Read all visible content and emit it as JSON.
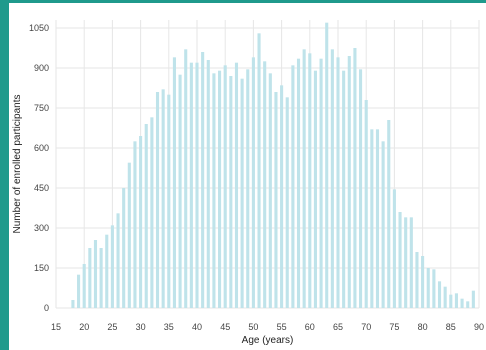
{
  "colors": {
    "frame": "#1f9a8c",
    "panel": "#ffffff",
    "bar": "#bfe3ea",
    "grid": "#e6e6e6"
  },
  "chart_data": {
    "type": "bar",
    "xlabel": "Age (years)",
    "ylabel": "Number of enrolled participants",
    "xlim": [
      15,
      90
    ],
    "ylim": [
      0,
      1080
    ],
    "xticks": [
      15,
      20,
      25,
      30,
      35,
      40,
      45,
      50,
      55,
      60,
      65,
      70,
      75,
      80,
      85,
      90
    ],
    "yticks": [
      0,
      150,
      300,
      450,
      600,
      750,
      900,
      1050
    ],
    "grid": true,
    "x": [
      18,
      19,
      20,
      21,
      22,
      23,
      24,
      25,
      26,
      27,
      28,
      29,
      30,
      31,
      32,
      33,
      34,
      35,
      36,
      37,
      38,
      39,
      40,
      41,
      42,
      43,
      44,
      45,
      46,
      47,
      48,
      49,
      50,
      51,
      52,
      53,
      54,
      55,
      56,
      57,
      58,
      59,
      60,
      61,
      62,
      63,
      64,
      65,
      66,
      67,
      68,
      69,
      70,
      71,
      72,
      73,
      74,
      75,
      76,
      77,
      78,
      79,
      80,
      81,
      82,
      83,
      84,
      85,
      86,
      87,
      88,
      89
    ],
    "values": [
      30,
      125,
      165,
      225,
      255,
      225,
      275,
      310,
      355,
      450,
      545,
      625,
      645,
      690,
      715,
      810,
      820,
      800,
      940,
      875,
      970,
      920,
      920,
      960,
      930,
      880,
      890,
      910,
      870,
      920,
      860,
      895,
      940,
      1030,
      925,
      880,
      810,
      835,
      790,
      910,
      935,
      970,
      955,
      890,
      935,
      1070,
      970,
      940,
      890,
      945,
      975,
      895,
      780,
      670,
      670,
      625,
      705,
      445,
      360,
      340,
      340,
      210,
      195,
      150,
      145,
      100,
      80,
      50,
      55,
      35,
      25,
      65
    ]
  }
}
